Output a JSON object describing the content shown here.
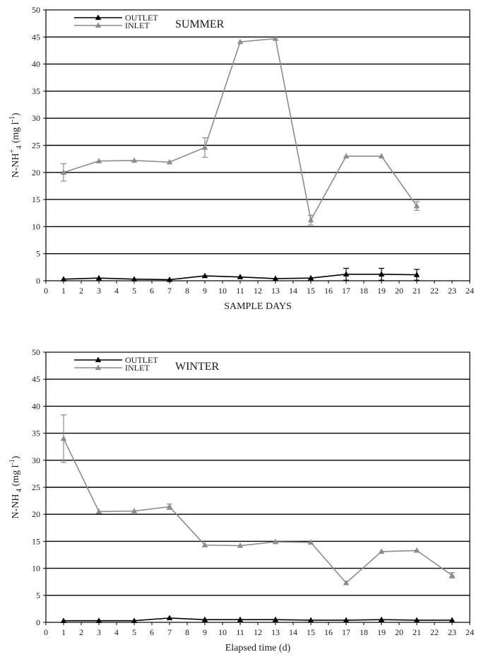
{
  "chart_data": [
    {
      "type": "line",
      "title": "SUMMER",
      "xlabel": "SAMPLE DAYS",
      "ylabel_main": "N-NH",
      "ylabel_sup": "+",
      "ylabel_sub": "4",
      "ylabel_unit": " (mg l",
      "ylabel_unit_sup": "-1",
      "ylabel_close": ")",
      "xlim": [
        0,
        24
      ],
      "ylim": [
        0,
        50
      ],
      "xticks": [
        0,
        1,
        2,
        3,
        4,
        5,
        6,
        7,
        8,
        9,
        10,
        11,
        12,
        13,
        14,
        15,
        16,
        17,
        18,
        19,
        20,
        21,
        22,
        23,
        24
      ],
      "yticks": [
        0,
        5,
        10,
        15,
        20,
        25,
        30,
        35,
        40,
        45,
        50
      ],
      "grid": "horizontal",
      "legend_position": "top-left",
      "series": [
        {
          "name": "OUTLET",
          "color": "#000000",
          "x": [
            1,
            3,
            5,
            7,
            9,
            11,
            13,
            15,
            17,
            19,
            21
          ],
          "y": [
            0.3,
            0.5,
            0.3,
            0.2,
            0.9,
            0.7,
            0.4,
            0.5,
            1.2,
            1.2,
            1.1
          ],
          "err": [
            0,
            0,
            0,
            0,
            0,
            0,
            0,
            0,
            1.1,
            1.1,
            1.0
          ]
        },
        {
          "name": "INLET",
          "color": "#8c8c8c",
          "x": [
            1,
            3,
            5,
            7,
            9,
            11,
            13,
            15,
            17,
            19,
            21
          ],
          "y": [
            20.0,
            22.1,
            22.2,
            21.9,
            24.6,
            44.1,
            44.7,
            11.2,
            23.0,
            23.0,
            13.8
          ],
          "err": [
            1.6,
            0,
            0,
            0,
            1.8,
            0,
            0,
            0.9,
            0,
            0,
            0.8
          ]
        }
      ]
    },
    {
      "type": "line",
      "title": "WINTER",
      "xlabel": "Elapsed time (d)",
      "ylabel_main": "N-NH",
      "ylabel_sup": "",
      "ylabel_sub": " 4",
      "ylabel_unit": " (mg l",
      "ylabel_unit_sup": "-1",
      "ylabel_close": ")",
      "xlim": [
        0,
        24
      ],
      "ylim": [
        0,
        50
      ],
      "xticks": [
        0,
        1,
        2,
        3,
        4,
        5,
        6,
        7,
        8,
        9,
        10,
        11,
        12,
        13,
        14,
        15,
        16,
        17,
        18,
        19,
        20,
        21,
        22,
        23,
        24
      ],
      "yticks": [
        0,
        5,
        10,
        15,
        20,
        25,
        30,
        35,
        40,
        45,
        50
      ],
      "grid": "horizontal",
      "legend_position": "top-left",
      "series": [
        {
          "name": "OUTLET",
          "color": "#000000",
          "x": [
            1,
            3,
            5,
            7,
            9,
            11,
            13,
            15,
            17,
            19,
            21,
            23
          ],
          "y": [
            0.3,
            0.3,
            0.3,
            0.8,
            0.5,
            0.5,
            0.5,
            0.4,
            0.4,
            0.5,
            0.4,
            0.4
          ],
          "err": [
            0,
            0,
            0,
            0,
            0,
            0,
            0,
            0,
            0,
            0,
            0,
            0
          ]
        },
        {
          "name": "INLET",
          "color": "#8c8c8c",
          "x": [
            1,
            3,
            5,
            7,
            9,
            11,
            13,
            15,
            17,
            19,
            21,
            23
          ],
          "y": [
            34.0,
            20.5,
            20.6,
            21.4,
            14.3,
            14.2,
            14.9,
            14.8,
            7.3,
            13.1,
            13.3,
            8.7
          ],
          "err": [
            4.4,
            0,
            0,
            0.5,
            0,
            0,
            0,
            0,
            0,
            0,
            0,
            0.5
          ]
        }
      ]
    }
  ]
}
